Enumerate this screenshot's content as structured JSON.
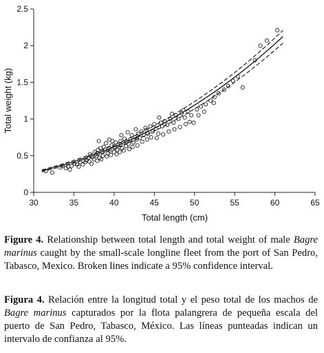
{
  "chart_data": {
    "type": "scatter",
    "xlabel": "Total length (cm)",
    "ylabel": "Total weight (kg)",
    "xlim": [
      30,
      65
    ],
    "ylim": [
      0,
      2.5
    ],
    "x_ticks": [
      "30",
      "35",
      "40",
      "45",
      "50",
      "55",
      "60",
      "65"
    ],
    "y_ticks": [
      "0",
      "0.5",
      "1",
      "1.5",
      "2",
      "2.5"
    ],
    "grid": false,
    "legend": "none",
    "marker": "open-circle",
    "points": [
      [
        31.5,
        0.29
      ],
      [
        32.3,
        0.27
      ],
      [
        33.3,
        0.34
      ],
      [
        33.6,
        0.36
      ],
      [
        34.0,
        0.33
      ],
      [
        34.3,
        0.35
      ],
      [
        34.7,
        0.36
      ],
      [
        35.1,
        0.39
      ],
      [
        35.4,
        0.38
      ],
      [
        35.8,
        0.41
      ],
      [
        36.2,
        0.43
      ],
      [
        36.4,
        0.41
      ],
      [
        36.6,
        0.44
      ],
      [
        36.8,
        0.47
      ],
      [
        37.0,
        0.52
      ],
      [
        37.3,
        0.48
      ],
      [
        37.5,
        0.45
      ],
      [
        37.6,
        0.55
      ],
      [
        37.8,
        0.5
      ],
      [
        38.0,
        0.53
      ],
      [
        38.0,
        0.58
      ],
      [
        38.2,
        0.47
      ],
      [
        38.3,
        0.6
      ],
      [
        38.5,
        0.55
      ],
      [
        38.6,
        0.5
      ],
      [
        38.7,
        0.62
      ],
      [
        38.9,
        0.58
      ],
      [
        39.0,
        0.67
      ],
      [
        39.2,
        0.53
      ],
      [
        39.3,
        0.6
      ],
      [
        39.5,
        0.57
      ],
      [
        39.7,
        0.64
      ],
      [
        39.8,
        0.7
      ],
      [
        40.0,
        0.55
      ],
      [
        40.1,
        0.61
      ],
      [
        40.2,
        0.68
      ],
      [
        40.4,
        0.58
      ],
      [
        40.5,
        0.65
      ],
      [
        40.6,
        0.62
      ],
      [
        40.8,
        0.7
      ],
      [
        41.0,
        0.6
      ],
      [
        41.1,
        0.67
      ],
      [
        41.3,
        0.73
      ],
      [
        41.5,
        0.63
      ],
      [
        41.6,
        0.69
      ],
      [
        41.8,
        0.66
      ],
      [
        42.0,
        0.72
      ],
      [
        42.2,
        0.78
      ],
      [
        42.4,
        0.68
      ],
      [
        42.6,
        0.75
      ],
      [
        42.8,
        0.72
      ],
      [
        43.0,
        0.8
      ],
      [
        43.2,
        0.74
      ],
      [
        43.4,
        0.83
      ],
      [
        43.7,
        0.78
      ],
      [
        44.0,
        0.85
      ],
      [
        44.2,
        0.8
      ],
      [
        44.5,
        0.9
      ],
      [
        44.8,
        0.83
      ],
      [
        45.0,
        0.93
      ],
      [
        45.2,
        0.87
      ],
      [
        45.5,
        0.8
      ],
      [
        45.8,
        0.95
      ],
      [
        46.0,
        0.9
      ],
      [
        46.3,
        0.97
      ],
      [
        46.6,
        0.92
      ],
      [
        47.0,
        1.0
      ],
      [
        47.4,
        0.95
      ],
      [
        47.7,
        1.05
      ],
      [
        48.0,
        1.0
      ],
      [
        48.4,
        1.08
      ],
      [
        48.8,
        1.02
      ],
      [
        49.2,
        1.1
      ],
      [
        49.6,
        1.05
      ],
      [
        49.9,
        0.95
      ],
      [
        50.3,
        1.13
      ],
      [
        50.8,
        1.17
      ],
      [
        51.4,
        1.2
      ],
      [
        52.0,
        1.25
      ],
      [
        52.5,
        1.3
      ],
      [
        53.0,
        1.35
      ],
      [
        53.7,
        1.4
      ],
      [
        54.2,
        1.45
      ],
      [
        54.8,
        1.52
      ],
      [
        55.4,
        1.58
      ],
      [
        56.0,
        1.43
      ],
      [
        57.5,
        1.8
      ],
      [
        58.2,
        2.0
      ],
      [
        59.0,
        2.07
      ],
      [
        60.3,
        2.21
      ],
      [
        34.5,
        0.31
      ],
      [
        35.6,
        0.35
      ],
      [
        36.1,
        0.38
      ],
      [
        36.9,
        0.42
      ],
      [
        37.2,
        0.39
      ],
      [
        37.9,
        0.43
      ],
      [
        38.4,
        0.45
      ],
      [
        39.1,
        0.49
      ],
      [
        39.6,
        0.51
      ],
      [
        40.3,
        0.52
      ],
      [
        40.7,
        0.55
      ],
      [
        41.2,
        0.57
      ],
      [
        41.9,
        0.59
      ],
      [
        42.3,
        0.62
      ],
      [
        42.9,
        0.64
      ],
      [
        43.5,
        0.69
      ],
      [
        44.1,
        0.72
      ],
      [
        44.6,
        0.75
      ],
      [
        45.3,
        0.74
      ],
      [
        46.1,
        0.79
      ],
      [
        46.8,
        0.83
      ],
      [
        47.5,
        0.86
      ],
      [
        48.2,
        0.89
      ],
      [
        48.9,
        0.93
      ],
      [
        49.4,
        0.96
      ],
      [
        38.1,
        0.7
      ],
      [
        39.4,
        0.72
      ],
      [
        40.9,
        0.78
      ],
      [
        41.7,
        0.82
      ],
      [
        42.7,
        0.86
      ],
      [
        43.9,
        0.88
      ],
      [
        45.6,
        1.02
      ],
      [
        47.2,
        1.07
      ],
      [
        48.6,
        1.12
      ],
      [
        50.5,
        1.05
      ],
      [
        51.2,
        1.1
      ],
      [
        52.4,
        1.22
      ]
    ],
    "fit_curve": {
      "style": "solid",
      "a": 1.3e-05,
      "b": 2.92
    },
    "confidence_bands": [
      {
        "style": "dashed",
        "a": 1.22e-05,
        "b": 2.925
      },
      {
        "style": "dashed",
        "a": 1.38e-05,
        "b": 2.915
      }
    ]
  },
  "captions": {
    "english": {
      "lead": "Figure 4.",
      "part1": " Relationship between total length and total weight of male ",
      "species": "Bagre marinus",
      "part2": " caught by the small-scale longline fleet from the port of San Pedro, Tabasco, Mexico. Broken lines indicate a 95% confidence interval."
    },
    "spanish": {
      "lead": "Figura 4.",
      "part1": " Relación entre la longitud total y el peso total de los machos de ",
      "species": "Bagre marinus",
      "part2": " capturados por la flota palangrera de pequeña escala del puerto de San Pedro, Tabasco, México. Las líneas punteadas indican un intervalo de confianza al 95%."
    }
  }
}
